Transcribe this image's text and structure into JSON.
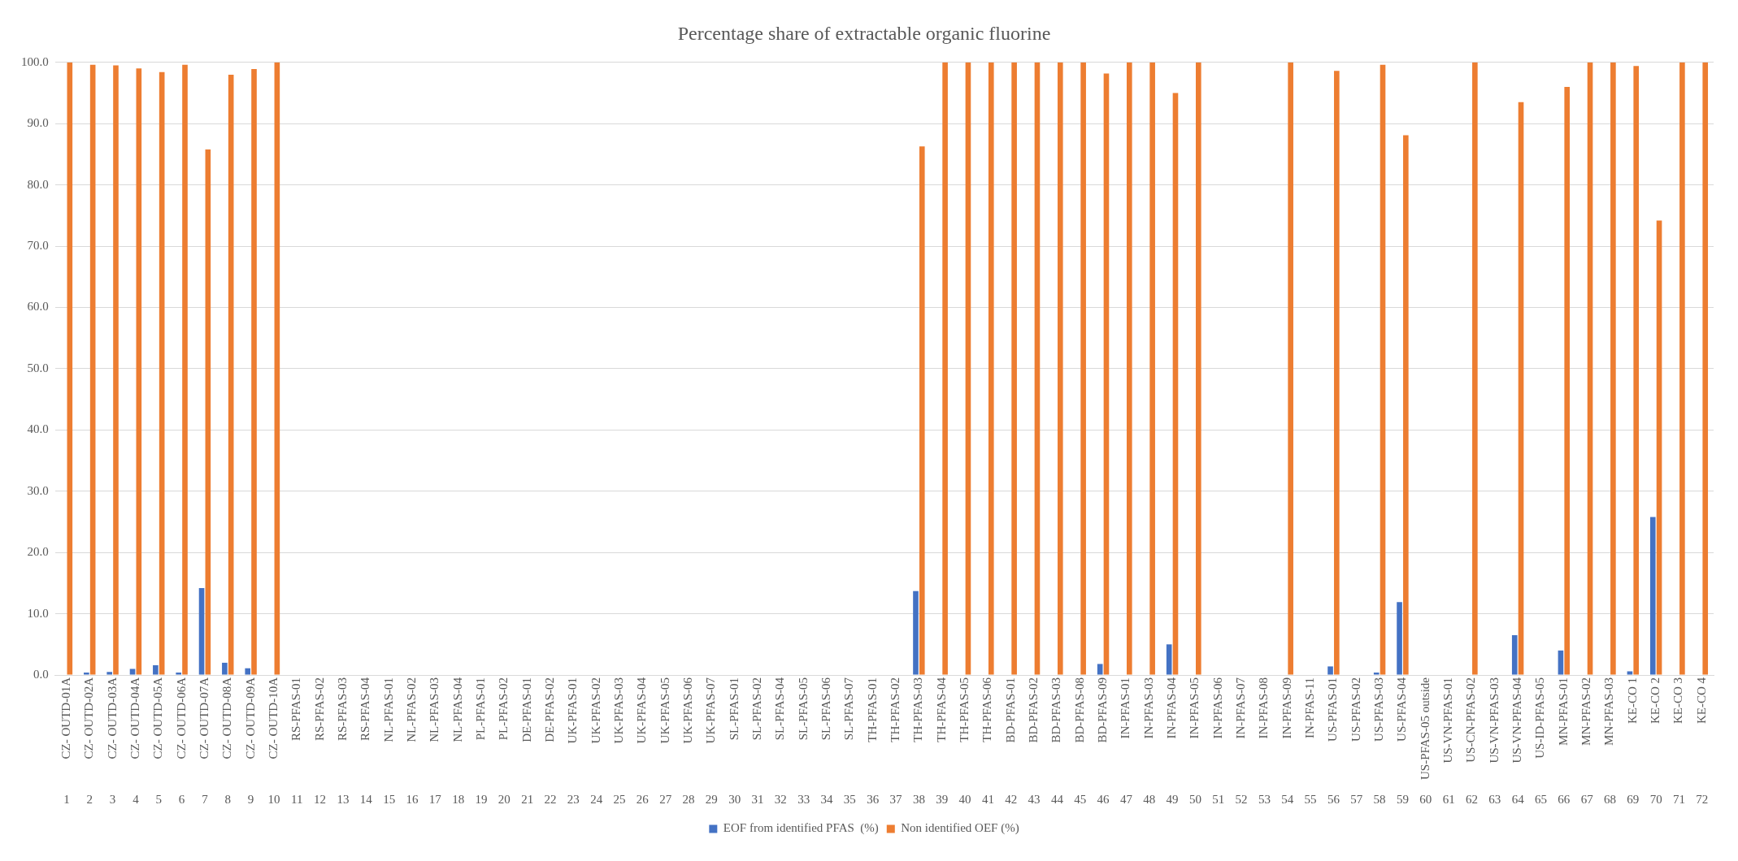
{
  "chart_data": {
    "type": "bar",
    "title": "Percentage share of extractable organic fluorine",
    "categories": [
      "CZ- OUTD-01A\n1",
      "CZ- OUTD-02A\n2",
      "CZ- OUTD-03A\n3",
      "CZ- OUTD-04A\n4",
      "CZ- OUTD-05A\n5",
      "CZ- OUTD-06A\n6",
      "CZ- OUTD-07A\n7",
      "CZ- OUTD-08A\n8",
      "CZ- OUTD-09A\n9",
      "CZ- OUTD-10A\n10",
      "RS-PFAS-01\n11",
      "RS-PFAS-02\n12",
      "RS-PFAS-03\n13",
      "RS-PFAS-04\n14",
      "NL-PFAS-01\n15",
      "NL-PFAS-02\n16",
      "NL-PFAS-03\n17",
      "NL-PFAS-04\n18",
      "PL-PFAS-01\n19",
      "PL-PFAS-02\n20",
      "DE-PFAS-01\n21",
      "DE-PFAS-02\n22",
      "UK-PFAS-01\n23",
      "UK-PFAS-02\n24",
      "UK-PFAS-03\n25",
      "UK-PFAS-04\n26",
      "UK-PFAS-05\n27",
      "UK-PFAS-06\n28",
      "UK-PFAS-07\n29",
      "SL-PFAS-01\n30",
      "SL-PFAS-02\n31",
      "SL-PFAS-04\n32",
      "SL-PFAS-05\n33",
      "SL-PFAS-06\n34",
      "SL-PFAS-07\n35",
      "TH-PFAS-01\n36",
      "TH-PFAS-02\n37",
      "TH-PFAS-03\n38",
      "TH-PFAS-04\n39",
      "TH-PFAS-05\n40",
      "TH-PFAS-06\n41",
      "BD-PFAS-01\n42",
      "BD-PFAS-02\n43",
      "BD-PFAS-03\n44",
      "BD-PFAS-08\n45",
      "BD-PFAS-09\n46",
      "IN-PFAS-01\n47",
      "IN-PFAS-03\n48",
      "IN-PFAS-04\n49",
      "IN-PFAS-05\n50",
      "IN-PFAS-06\n51",
      "IN-PFAS-07\n52",
      "IN-PFAS-08\n53",
      "IN-PFAS-09\n54",
      "IN-PFAS-11\n55",
      "US-PFAS-01\n56",
      "US-PFAS-02\n57",
      "US-PFAS-03\n58",
      "US-PFAS-04\n59",
      "US-PFAS-05 outside\n60",
      "US-VN-PFAS-01\n61",
      "US-CN-PFAS-02\n62",
      "US-VN-PFAS-03\n63",
      "US-VN-PFAS-04\n64",
      "US-ID-PFAS-05\n65",
      "MN-PFAS-01\n66",
      "MN-PFAS-02\n67",
      "MN-PFAS-03\n68",
      "KE-CO 1\n69",
      "KE-CO 2\n70",
      "KE-CO 3\n71",
      "KE-CO 4\n72"
    ],
    "series": [
      {
        "name": "EOF from identified PFAS  (%)",
        "color": "#4472c4",
        "values": [
          0,
          0.4,
          0.5,
          1.0,
          1.6,
          0.4,
          14.2,
          2.0,
          1.1,
          0,
          null,
          null,
          null,
          null,
          null,
          null,
          null,
          null,
          null,
          null,
          null,
          null,
          null,
          null,
          null,
          null,
          null,
          null,
          null,
          null,
          null,
          null,
          null,
          null,
          null,
          null,
          null,
          13.7,
          0,
          0,
          0,
          0,
          0,
          0,
          0,
          1.8,
          0,
          0,
          5.0,
          0,
          null,
          null,
          null,
          0,
          null,
          1.4,
          null,
          0.4,
          11.9,
          null,
          null,
          0,
          null,
          6.5,
          null,
          4.0,
          0,
          0,
          0.6,
          25.8,
          0,
          0
        ]
      },
      {
        "name": "Non identified OEF (%)",
        "color": "#ed7d31",
        "values": [
          100,
          99.6,
          99.5,
          99.0,
          98.4,
          99.6,
          85.8,
          98.0,
          98.9,
          100,
          null,
          null,
          null,
          null,
          null,
          null,
          null,
          null,
          null,
          null,
          null,
          null,
          null,
          null,
          null,
          null,
          null,
          null,
          null,
          null,
          null,
          null,
          null,
          null,
          null,
          null,
          null,
          86.3,
          100,
          100,
          100,
          100,
          100,
          100,
          100,
          98.2,
          100,
          100,
          95.0,
          100,
          null,
          null,
          null,
          100,
          null,
          98.6,
          null,
          99.6,
          88.1,
          null,
          null,
          100,
          null,
          93.5,
          null,
          96.0,
          100,
          100,
          99.4,
          74.2,
          100,
          100
        ]
      }
    ],
    "ylim": [
      0,
      100
    ],
    "yticks": [
      {
        "value": 0,
        "label": "0.0"
      },
      {
        "value": 10,
        "label": "10.0"
      },
      {
        "value": 20,
        "label": "20.0"
      },
      {
        "value": 30,
        "label": "30.0"
      },
      {
        "value": 40,
        "label": "40.0"
      },
      {
        "value": 50,
        "label": "50.0"
      },
      {
        "value": 60,
        "label": "60.0"
      },
      {
        "value": 70,
        "label": "70.0"
      },
      {
        "value": 80,
        "label": "80.0"
      },
      {
        "value": 90,
        "label": "90.0"
      },
      {
        "value": 100,
        "label": "100.0"
      }
    ],
    "grid": "y",
    "legend": "bottom"
  }
}
